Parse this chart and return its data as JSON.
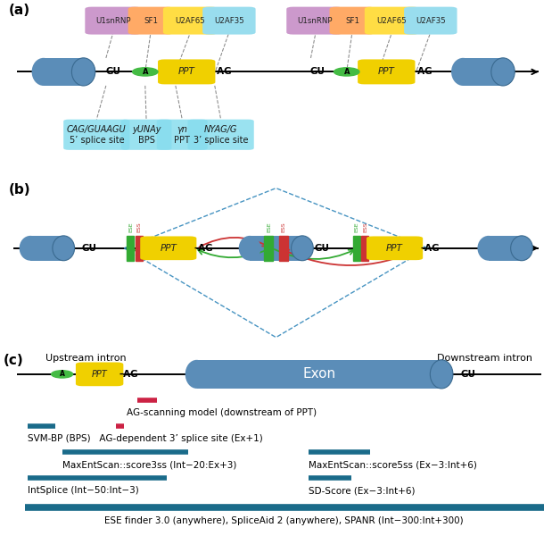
{
  "bg_color": "#ffffff",
  "exon_color": "#5b8db8",
  "ppt_color": "#f0d000",
  "branch_color": "#44bb44",
  "u1snrnp_color": "#cc99cc",
  "sf1_color": "#ffaa66",
  "u2af65_color": "#ffdd44",
  "u2af35_color": "#99ddee",
  "ann_color": "#88ddee",
  "ese_color": "#33aa33",
  "ess_color": "#cc3333",
  "teal": "#1a6b8a",
  "pink": "#cc2244",
  "panel_a_label": "(a)",
  "panel_b_label": "(b)",
  "panel_c_label": "(c)",
  "ann_labels": [
    "CAG/GUAAGU",
    "5’ splice site",
    "yUNAy",
    "BPS",
    "γn",
    "PPT",
    "NYAG/G",
    "3’ splice site"
  ],
  "c_labels": [
    "AG-scanning model (downstream of PPT)",
    "SVM-BP (BPS)   AG-dependent 3’ splice site (Ex+1)",
    "MaxEntScan::score3ss (Int−20:Ex+3)",
    "MaxEntScan::score5ss (Ex−3:Int+6)",
    "IntSplice (Int−50:Int−3)",
    "SD-Score (Ex−3:Int+6)",
    "ESE finder 3.0 (anywhere), SpliceAid 2 (anywhere), SPANR (Int−300:Int+300)"
  ]
}
